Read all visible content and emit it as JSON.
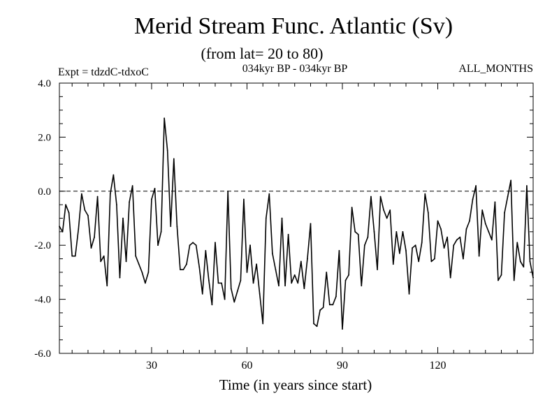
{
  "chart_data": {
    "type": "line",
    "title": "Merid Stream Func. Atlantic (Sv)",
    "subtitle": "(from lat= 20 to 80)",
    "expt_label": "Expt = tdzdC-tdxoC",
    "period_label": "034kyr BP - 034kyr BP",
    "months_label": "ALL_MONTHS",
    "xlabel": "Time (in years since start)",
    "ylabel": "",
    "xlim": [
      1,
      150
    ],
    "ylim": [
      -6.0,
      4.0
    ],
    "x_ticks": [
      30,
      60,
      90,
      120
    ],
    "x_tick_labels": [
      "30",
      "60",
      "90",
      "120"
    ],
    "y_ticks": [
      -6.0,
      -4.0,
      -2.0,
      0.0,
      2.0,
      4.0
    ],
    "y_tick_labels": [
      "-6.0",
      "-4.0",
      "-2.0",
      "0.0",
      "2.0",
      "4.0"
    ],
    "x_minor_step": 5,
    "y_minor_step": 0.5,
    "reference_line": {
      "y": 0.0,
      "style": "dashed"
    },
    "line_color": "#000000",
    "series": [
      {
        "name": "Merid Stream Func. Atlantic",
        "x_start": 1,
        "x_step": 1,
        "values": [
          -1.3,
          -1.5,
          -0.5,
          -0.8,
          -2.4,
          -2.4,
          -1.4,
          -0.1,
          -0.7,
          -0.9,
          -2.1,
          -1.7,
          -0.2,
          -2.6,
          -2.4,
          -3.5,
          -0.1,
          0.6,
          -0.5,
          -3.2,
          -1.0,
          -2.6,
          -0.4,
          0.2,
          -2.4,
          -2.7,
          -3.0,
          -3.4,
          -3.0,
          -0.3,
          0.1,
          -2.0,
          -1.5,
          2.7,
          1.5,
          -1.3,
          1.2,
          -1.3,
          -2.9,
          -2.9,
          -2.7,
          -2.0,
          -1.9,
          -2.0,
          -2.8,
          -3.8,
          -2.2,
          -3.3,
          -4.2,
          -1.9,
          -3.4,
          -3.4,
          -4.0,
          0.0,
          -3.6,
          -4.1,
          -3.7,
          -3.3,
          -0.3,
          -3.0,
          -2.0,
          -3.4,
          -2.7,
          -3.8,
          -4.9,
          -1.0,
          -0.1,
          -2.3,
          -2.9,
          -3.5,
          -1.0,
          -3.5,
          -1.6,
          -3.4,
          -3.1,
          -3.4,
          -2.6,
          -3.6,
          -2.5,
          -1.2,
          -4.9,
          -5.0,
          -4.4,
          -4.3,
          -3.0,
          -4.2,
          -4.2,
          -3.9,
          -2.2,
          -5.1,
          -3.3,
          -3.1,
          -0.6,
          -1.5,
          -1.6,
          -3.5,
          -2.0,
          -1.7,
          -0.2,
          -1.5,
          -2.9,
          -0.2,
          -0.7,
          -1.0,
          -0.7,
          -2.7,
          -1.5,
          -2.3,
          -1.5,
          -2.2,
          -3.8,
          -2.1,
          -2.0,
          -2.6,
          -1.9,
          -0.1,
          -0.8,
          -2.6,
          -2.5,
          -1.1,
          -1.4,
          -2.1,
          -1.7,
          -3.2,
          -2.0,
          -1.8,
          -1.7,
          -2.5,
          -1.4,
          -1.1,
          -0.3,
          0.2,
          -2.4,
          -0.7,
          -1.2,
          -1.5,
          -1.8,
          -0.4,
          -3.3,
          -3.1,
          -0.8,
          -0.2,
          0.4,
          -3.3,
          -1.9,
          -2.6,
          -2.8,
          0.2,
          -2.6,
          -3.2
        ]
      }
    ]
  }
}
